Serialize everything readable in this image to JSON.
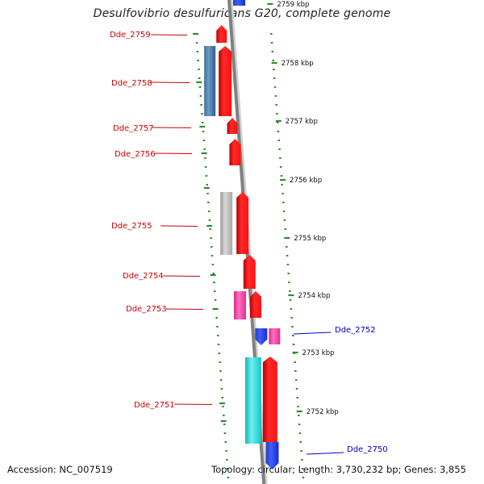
{
  "title": "Desulfovibrio desulfuricans G20, complete genome",
  "footer": {
    "accession": "Accession: NC_007519",
    "topology": "Topology: circular; Length: 3,730,232 bp; Genes: 3,855"
  },
  "colors": {
    "backbone": "#808080",
    "forward_gene": "#ff0000",
    "reverse_gene": "#0000ff",
    "tick": "#2e8b2e",
    "label_left": "#cc0000",
    "label_right": "#0000cc"
  },
  "kbp_ticks": [
    {
      "label": "2759 kbp"
    },
    {
      "label": "2758 kbp"
    },
    {
      "label": "2757 kbp"
    },
    {
      "label": "2756 kbp"
    },
    {
      "label": "2755 kbp"
    },
    {
      "label": "2754 kbp"
    },
    {
      "label": "2753 kbp"
    },
    {
      "label": "2752 kbp"
    }
  ],
  "genes": [
    {
      "name": "Dde_2759",
      "strand": "+"
    },
    {
      "name": "Dde_2758",
      "strand": "+"
    },
    {
      "name": "Dde_2757",
      "strand": "+"
    },
    {
      "name": "Dde_2756",
      "strand": "+"
    },
    {
      "name": "Dde_2755",
      "strand": "+"
    },
    {
      "name": "Dde_2754",
      "strand": "+"
    },
    {
      "name": "Dde_2753",
      "strand": "+"
    },
    {
      "name": "Dde_2752",
      "strand": "-"
    },
    {
      "name": "Dde_2751",
      "strand": "+"
    },
    {
      "name": "Dde_2750",
      "strand": "-"
    }
  ]
}
